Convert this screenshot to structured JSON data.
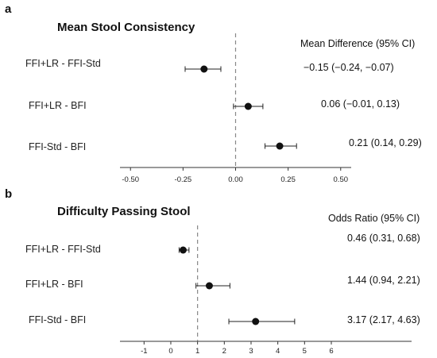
{
  "chart_data": [
    {
      "type": "forest",
      "panel_letter": "a",
      "title": "Mean Stool Consistency",
      "column_header": "Mean Difference (95% CI)",
      "reference_line": 0,
      "xlim": [
        -0.55,
        0.55
      ],
      "xticks": [
        -0.5,
        -0.25,
        0.0,
        0.25,
        0.5
      ],
      "xtick_labels": [
        "-0.50",
        "-0.25",
        "0.00",
        "0.25",
        "0.50"
      ],
      "rows": [
        {
          "label": "FFI+LR - FFI-Std",
          "estimate": -0.15,
          "lower": -0.24,
          "upper": -0.07,
          "text": "−0.15 (−0.24, −0.07)"
        },
        {
          "label": "FFI+LR - BFI",
          "estimate": 0.06,
          "lower": -0.01,
          "upper": 0.13,
          "text": "0.06 (−0.01, 0.13)"
        },
        {
          "label": "FFI-Std - BFI",
          "estimate": 0.21,
          "lower": 0.14,
          "upper": 0.29,
          "text": "0.21 (0.14, 0.29)"
        }
      ]
    },
    {
      "type": "forest",
      "panel_letter": "b",
      "title": "Difficulty Passing Stool",
      "column_header": "Odds Ratio (95% CI)",
      "reference_line": 1,
      "xlim": [
        -1.9,
        9.0
      ],
      "xticks": [
        -1,
        0,
        1,
        2,
        3,
        4,
        5,
        6
      ],
      "xtick_labels": [
        "-1",
        "0",
        "1",
        "2",
        "3",
        "4",
        "5",
        "6"
      ],
      "rows": [
        {
          "label": "FFI+LR - FFI-Std",
          "estimate": 0.46,
          "lower": 0.31,
          "upper": 0.68,
          "text": "0.46 (0.31, 0.68)"
        },
        {
          "label": "FFI+LR - BFI",
          "estimate": 1.44,
          "lower": 0.94,
          "upper": 2.21,
          "text": "1.44 (0.94, 2.21)"
        },
        {
          "label": "FFI-Std - BFI",
          "estimate": 3.17,
          "lower": 2.17,
          "upper": 4.63,
          "text": "3.17 (2.17, 4.63)"
        }
      ]
    }
  ]
}
